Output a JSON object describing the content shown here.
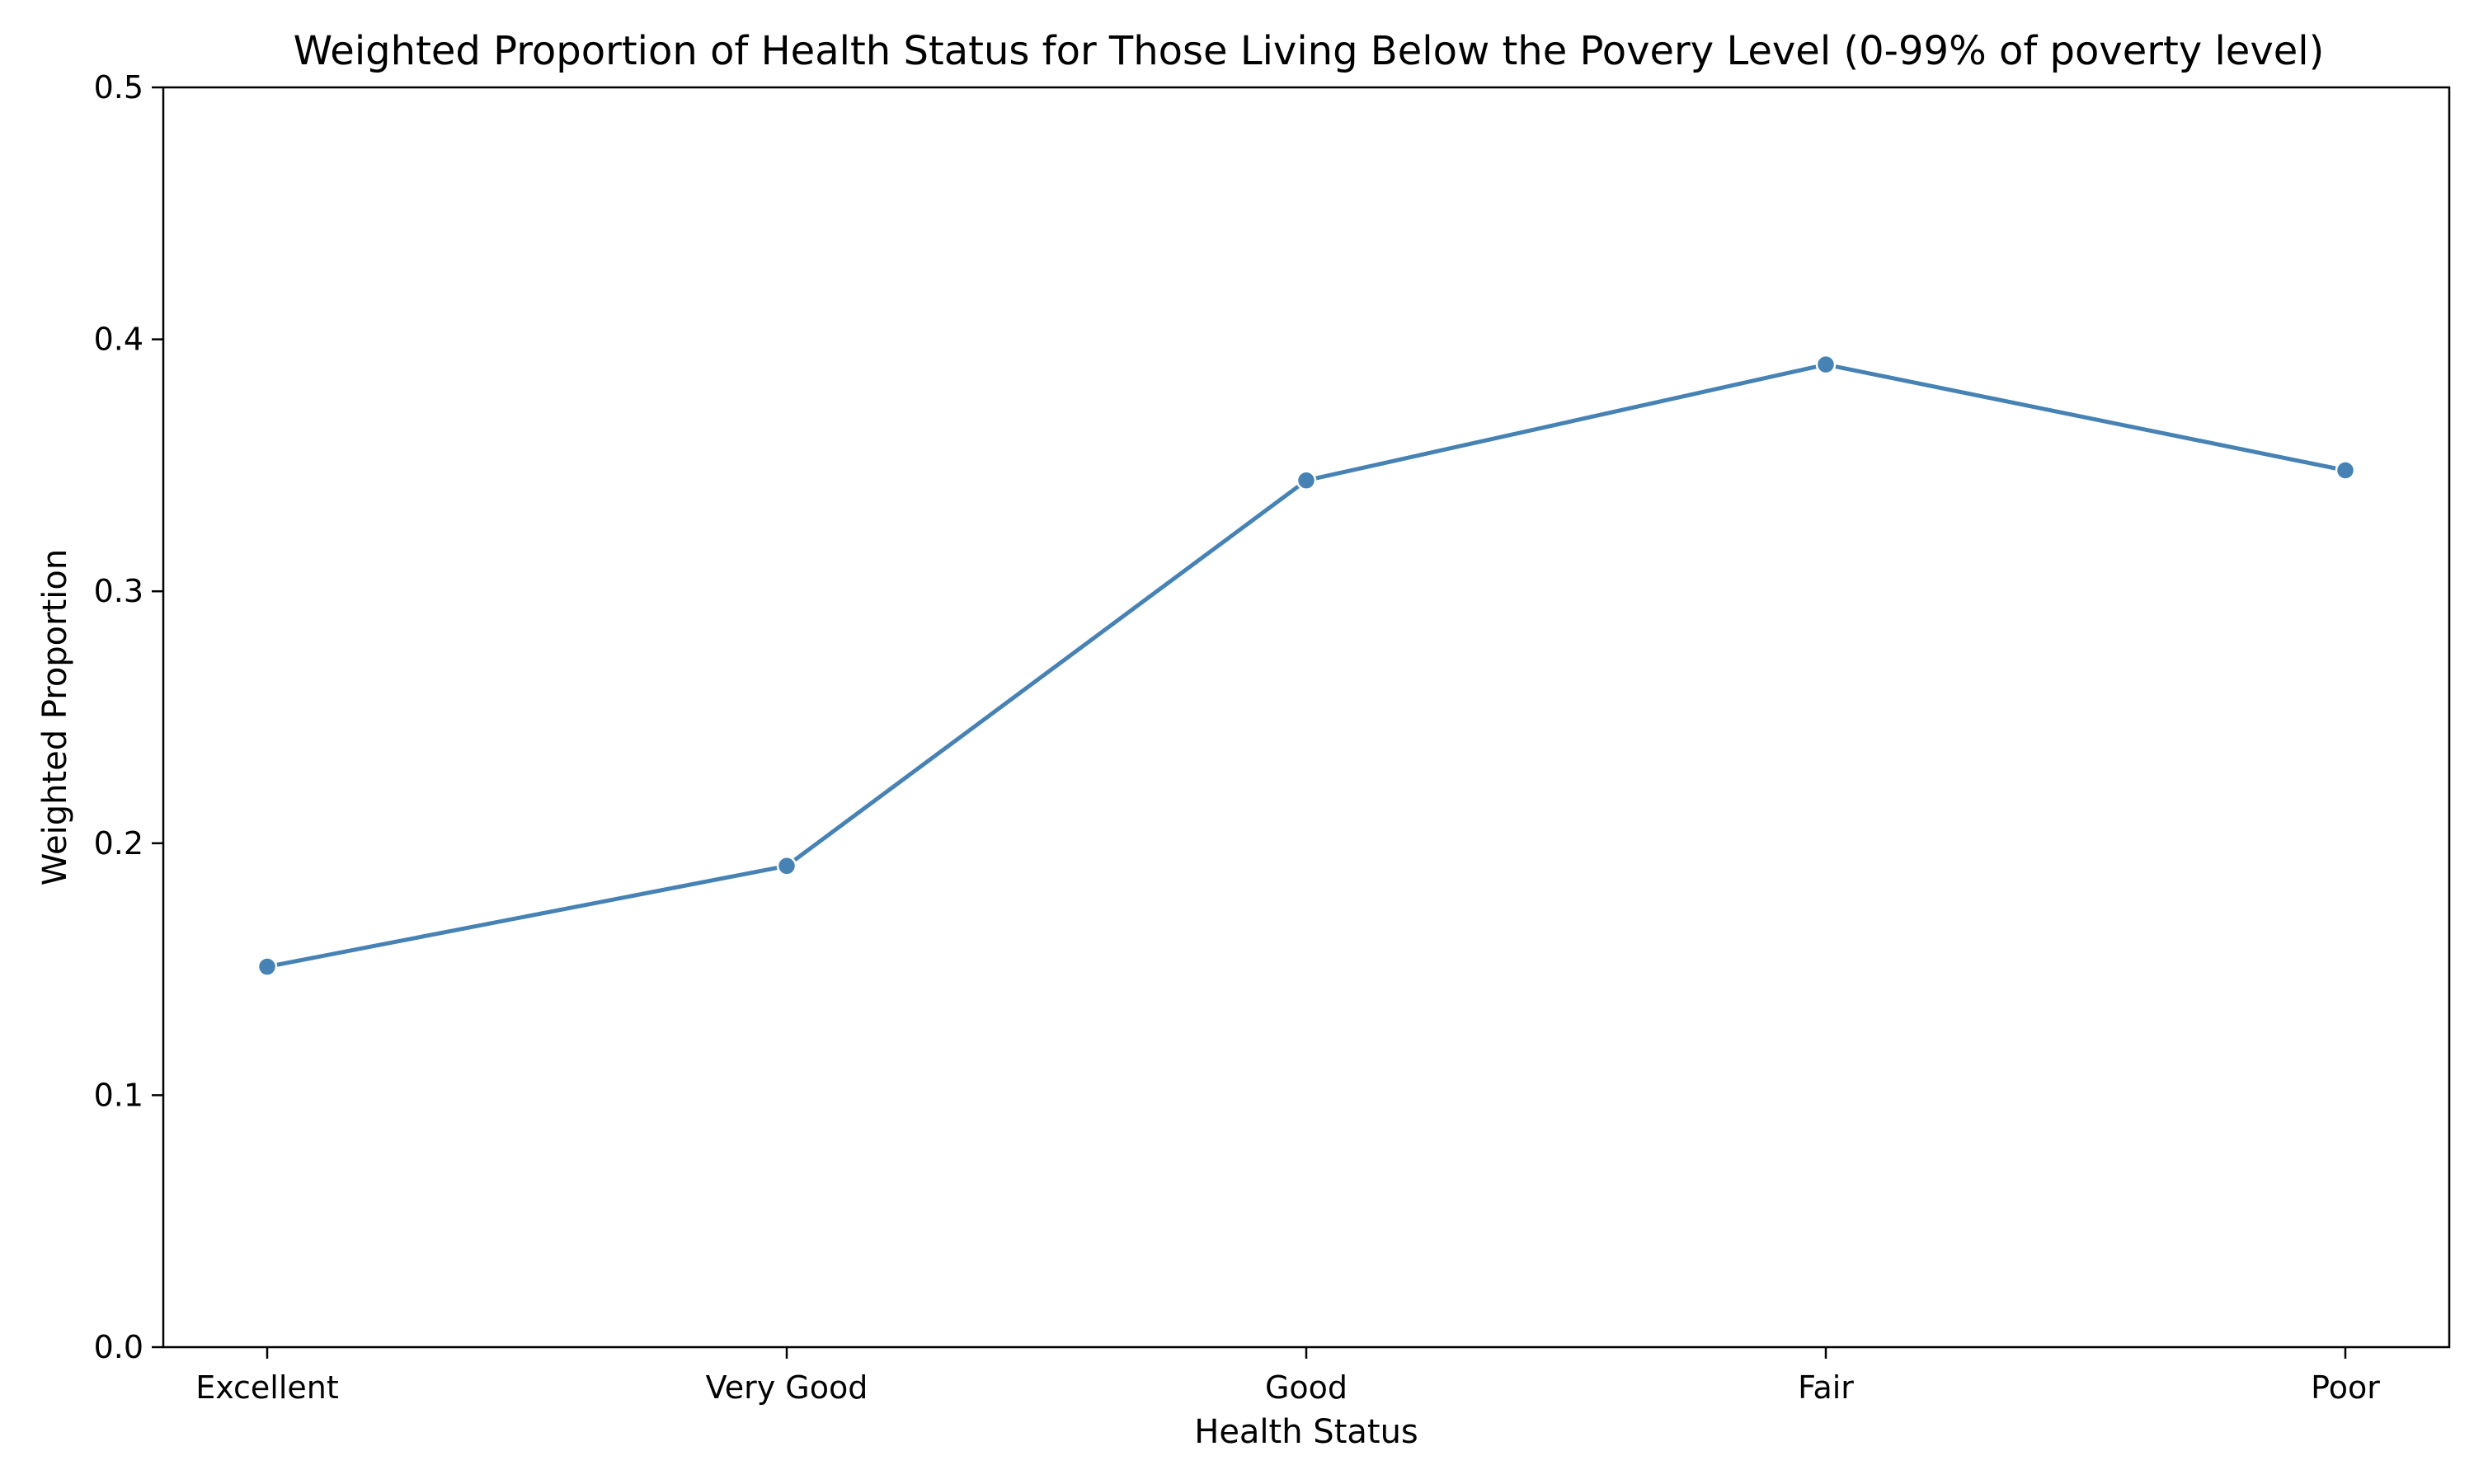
{
  "chart_data": {
    "type": "line",
    "title": "Weighted Proportion of Health Status for Those Living Below the Povery Level (0-99% of poverty level)",
    "xlabel": "Health Status",
    "ylabel": "Weighted Proportion",
    "categories": [
      "Excellent",
      "Very Good",
      "Good",
      "Fair",
      "Poor"
    ],
    "values": [
      0.151,
      0.191,
      0.344,
      0.39,
      0.348
    ],
    "ylim": [
      0,
      0.5
    ],
    "yticks": [
      0.0,
      0.1,
      0.2,
      0.3,
      0.4,
      0.5
    ],
    "ytick_labels": [
      "0.0",
      "0.1",
      "0.2",
      "0.3",
      "0.4",
      "0.5"
    ],
    "grid": false,
    "legend": "none",
    "line_color": "#4682b4",
    "marker": "circle"
  }
}
